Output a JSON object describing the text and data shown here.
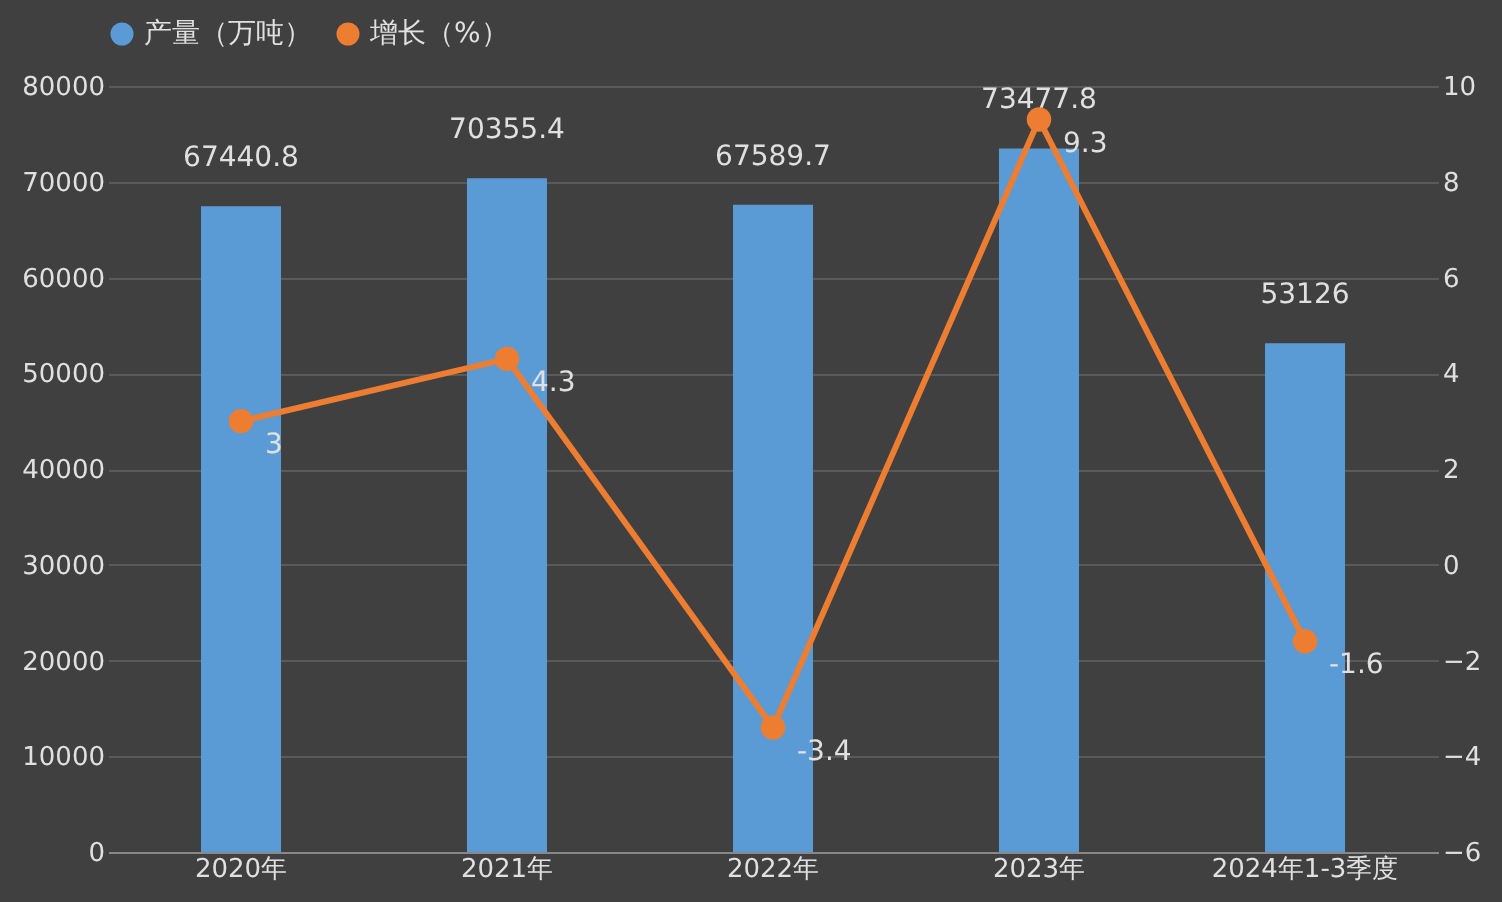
{
  "chart_data": {
    "type": "bar",
    "categories": [
      "2020年",
      "2021年",
      "2022年",
      "2023年",
      "2024年1-3季度"
    ],
    "series": [
      {
        "name": "产量（万吨）",
        "color": "#5b9bd5",
        "values": [
          67440.8,
          70355.4,
          67589.7,
          73477.8,
          53126
        ]
      },
      {
        "name": "增长（%）",
        "type": "line",
        "axis": "y2",
        "color": "#ed7d31",
        "values": [
          3,
          4.3,
          -3.4,
          9.3,
          -1.6
        ]
      }
    ],
    "ylim": [
      0,
      80000
    ],
    "yticks": [
      0,
      10000,
      20000,
      30000,
      40000,
      50000,
      60000,
      70000,
      80000
    ],
    "y2lim": [
      -6,
      10
    ],
    "y2ticks": [
      -6,
      -4,
      -2,
      0,
      2,
      4,
      6,
      8,
      10
    ],
    "data_labels": true,
    "legend": "top",
    "grid": "y",
    "marker": "circle"
  }
}
